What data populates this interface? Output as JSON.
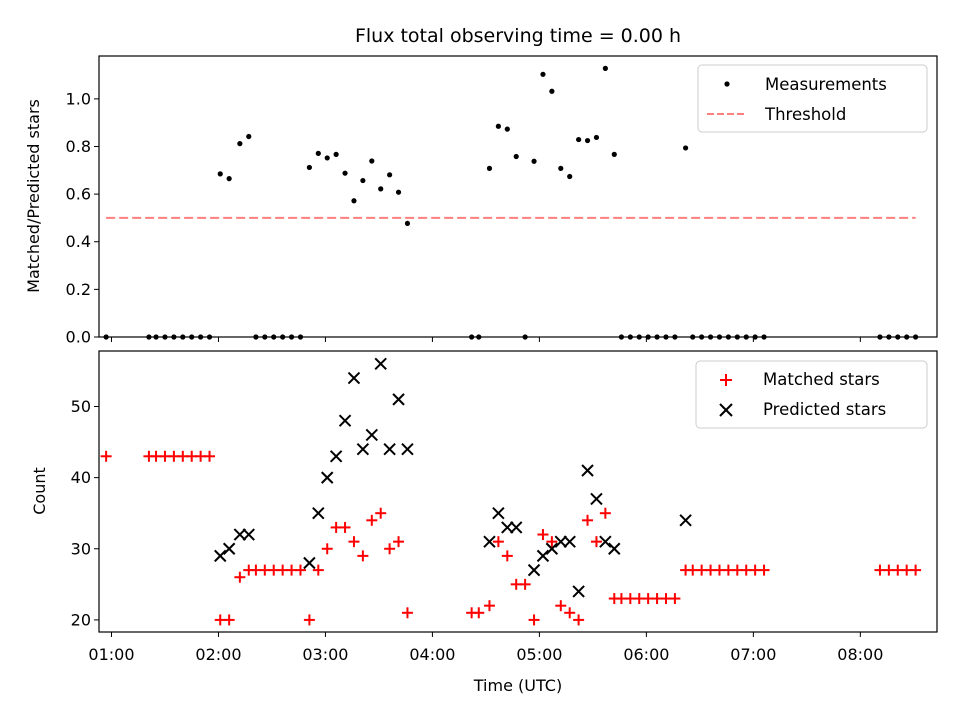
{
  "chart_data": [
    {
      "type": "scatter",
      "title": "Flux total observing time = 0.00 h",
      "ylabel": "Matched/Predicted stars",
      "xlabel": "",
      "xlim": [
        "00:53",
        "08:43"
      ],
      "ylim": [
        0,
        1.18
      ],
      "yticks": [
        "0.0",
        "0.2",
        "0.4",
        "0.6",
        "0.8",
        "1.0"
      ],
      "legend": "top-right",
      "grid": false,
      "series": [
        {
          "name": "Measurements",
          "marker": "dot",
          "color": "#000000",
          "points": [
            [
              "00:57",
              0
            ],
            [
              "01:21",
              0
            ],
            [
              "01:25",
              0
            ],
            [
              "01:30",
              0
            ],
            [
              "01:35",
              0
            ],
            [
              "01:40",
              0
            ],
            [
              "01:45",
              0
            ],
            [
              "01:50",
              0
            ],
            [
              "01:55",
              0
            ],
            [
              "02:01",
              0.685
            ],
            [
              "02:06",
              0.665
            ],
            [
              "02:12",
              0.812
            ],
            [
              "02:17",
              0.842
            ],
            [
              "02:21",
              0
            ],
            [
              "02:26",
              0
            ],
            [
              "02:31",
              0
            ],
            [
              "02:36",
              0
            ],
            [
              "02:41",
              0
            ],
            [
              "02:46",
              0
            ],
            [
              "02:51",
              0.712
            ],
            [
              "02:56",
              0.771
            ],
            [
              "03:01",
              0.752
            ],
            [
              "03:06",
              0.767
            ],
            [
              "03:11",
              0.688
            ],
            [
              "03:16",
              0.572
            ],
            [
              "03:21",
              0.657
            ],
            [
              "03:26",
              0.739
            ],
            [
              "03:31",
              0.622
            ],
            [
              "03:36",
              0.681
            ],
            [
              "03:41",
              0.608
            ],
            [
              "03:46",
              0.477
            ],
            [
              "04:22",
              0
            ],
            [
              "04:26",
              0
            ],
            [
              "04:32",
              0.708
            ],
            [
              "04:37",
              0.885
            ],
            [
              "04:42",
              0.873
            ],
            [
              "04:47",
              0.758
            ],
            [
              "04:52",
              0
            ],
            [
              "04:57",
              0.738
            ],
            [
              "05:02",
              1.103
            ],
            [
              "05:07",
              1.032
            ],
            [
              "05:12",
              0.708
            ],
            [
              "05:17",
              0.674
            ],
            [
              "05:22",
              0.829
            ],
            [
              "05:27",
              0.825
            ],
            [
              "05:32",
              0.838
            ],
            [
              "05:37",
              1.128
            ],
            [
              "05:42",
              0.767
            ],
            [
              "05:46",
              0
            ],
            [
              "05:51",
              0
            ],
            [
              "05:56",
              0
            ],
            [
              "06:01",
              0
            ],
            [
              "06:06",
              0
            ],
            [
              "06:11",
              0
            ],
            [
              "06:16",
              0
            ],
            [
              "06:22",
              0.794
            ],
            [
              "06:26",
              0
            ],
            [
              "06:31",
              0
            ],
            [
              "06:36",
              0
            ],
            [
              "06:41",
              0
            ],
            [
              "06:46",
              0
            ],
            [
              "06:51",
              0
            ],
            [
              "06:56",
              0
            ],
            [
              "07:01",
              0
            ],
            [
              "07:06",
              0
            ],
            [
              "08:11",
              0
            ],
            [
              "08:16",
              0
            ],
            [
              "08:21",
              0
            ],
            [
              "08:26",
              0
            ],
            [
              "08:31",
              0
            ]
          ]
        },
        {
          "name": "Threshold",
          "type": "line",
          "style": "dashed",
          "color": "#ff7f7f",
          "points": [
            [
              "00:57",
              0.5
            ],
            [
              "08:31",
              0.5
            ]
          ]
        }
      ]
    },
    {
      "type": "scatter",
      "title": "",
      "xlabel": "Time (UTC)",
      "ylabel": "Count",
      "xlim": [
        "00:53",
        "08:43"
      ],
      "ylim": [
        18.3,
        57.8
      ],
      "xticks": [
        "01:00",
        "02:00",
        "03:00",
        "04:00",
        "05:00",
        "06:00",
        "07:00",
        "08:00"
      ],
      "yticks": [
        "20",
        "30",
        "40",
        "50"
      ],
      "legend": "top-right",
      "grid": false,
      "series": [
        {
          "name": "Matched stars",
          "marker": "plus",
          "color": "#ff0000",
          "points": [
            [
              "00:57",
              43
            ],
            [
              "01:21",
              43
            ],
            [
              "01:25",
              43
            ],
            [
              "01:30",
              43
            ],
            [
              "01:35",
              43
            ],
            [
              "01:40",
              43
            ],
            [
              "01:45",
              43
            ],
            [
              "01:50",
              43
            ],
            [
              "01:55",
              43
            ],
            [
              "02:01",
              20
            ],
            [
              "02:06",
              20
            ],
            [
              "02:12",
              26
            ],
            [
              "02:17",
              27
            ],
            [
              "02:21",
              27
            ],
            [
              "02:26",
              27
            ],
            [
              "02:31",
              27
            ],
            [
              "02:36",
              27
            ],
            [
              "02:41",
              27
            ],
            [
              "02:46",
              27
            ],
            [
              "02:51",
              20
            ],
            [
              "02:56",
              27
            ],
            [
              "03:01",
              30
            ],
            [
              "03:06",
              33
            ],
            [
              "03:11",
              33
            ],
            [
              "03:16",
              31
            ],
            [
              "03:21",
              29
            ],
            [
              "03:26",
              34
            ],
            [
              "03:31",
              35
            ],
            [
              "03:36",
              30
            ],
            [
              "03:41",
              31
            ],
            [
              "03:46",
              21
            ],
            [
              "04:22",
              21
            ],
            [
              "04:26",
              21
            ],
            [
              "04:32",
              22
            ],
            [
              "04:37",
              31
            ],
            [
              "04:42",
              29
            ],
            [
              "04:47",
              25
            ],
            [
              "04:52",
              25
            ],
            [
              "04:57",
              20
            ],
            [
              "05:02",
              32
            ],
            [
              "05:07",
              31
            ],
            [
              "05:12",
              22
            ],
            [
              "05:17",
              21
            ],
            [
              "05:22",
              20
            ],
            [
              "05:27",
              34
            ],
            [
              "05:32",
              31
            ],
            [
              "05:37",
              35
            ],
            [
              "05:42",
              23
            ],
            [
              "05:46",
              23
            ],
            [
              "05:51",
              23
            ],
            [
              "05:56",
              23
            ],
            [
              "06:01",
              23
            ],
            [
              "06:06",
              23
            ],
            [
              "06:11",
              23
            ],
            [
              "06:16",
              23
            ],
            [
              "06:22",
              27
            ],
            [
              "06:26",
              27
            ],
            [
              "06:31",
              27
            ],
            [
              "06:36",
              27
            ],
            [
              "06:41",
              27
            ],
            [
              "06:46",
              27
            ],
            [
              "06:51",
              27
            ],
            [
              "06:56",
              27
            ],
            [
              "07:01",
              27
            ],
            [
              "07:06",
              27
            ],
            [
              "08:11",
              27
            ],
            [
              "08:16",
              27
            ],
            [
              "08:21",
              27
            ],
            [
              "08:26",
              27
            ],
            [
              "08:31",
              27
            ]
          ]
        },
        {
          "name": "Predicted stars",
          "marker": "x",
          "color": "#000000",
          "points": [
            [
              "02:01",
              29
            ],
            [
              "02:06",
              30
            ],
            [
              "02:12",
              32
            ],
            [
              "02:17",
              32
            ],
            [
              "02:51",
              28
            ],
            [
              "02:56",
              35
            ],
            [
              "03:01",
              40
            ],
            [
              "03:06",
              43
            ],
            [
              "03:11",
              48
            ],
            [
              "03:16",
              54
            ],
            [
              "03:21",
              44
            ],
            [
              "03:26",
              46
            ],
            [
              "03:31",
              56
            ],
            [
              "03:36",
              44
            ],
            [
              "03:41",
              51
            ],
            [
              "03:46",
              44
            ],
            [
              "04:32",
              31
            ],
            [
              "04:37",
              35
            ],
            [
              "04:42",
              33
            ],
            [
              "04:47",
              33
            ],
            [
              "04:57",
              27
            ],
            [
              "05:02",
              29
            ],
            [
              "05:07",
              30
            ],
            [
              "05:12",
              31
            ],
            [
              "05:17",
              31
            ],
            [
              "05:22",
              24
            ],
            [
              "05:27",
              41
            ],
            [
              "05:32",
              37
            ],
            [
              "05:37",
              31
            ],
            [
              "05:42",
              30
            ],
            [
              "06:22",
              34
            ]
          ]
        }
      ]
    }
  ]
}
